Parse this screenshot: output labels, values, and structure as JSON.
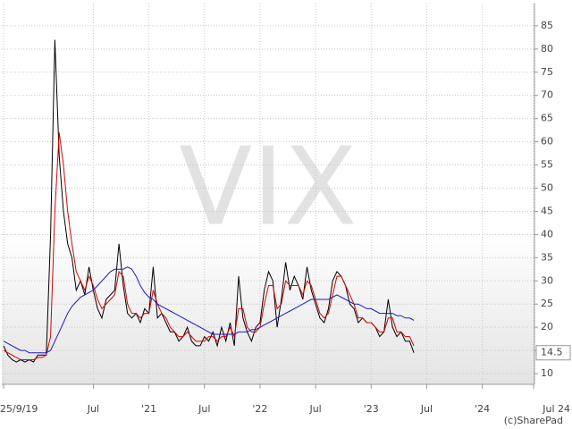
{
  "chart_data": {
    "type": "line",
    "title": "VIX",
    "copyright": "(c)SharePad",
    "last_value": 14.5,
    "categories": [
      "25/9/19",
      null,
      null,
      null,
      null,
      null,
      null,
      null,
      null,
      null,
      null,
      null,
      null,
      null,
      null,
      null,
      null,
      null,
      null,
      null,
      null,
      "Jul",
      null,
      null,
      null,
      null,
      null,
      null,
      null,
      null,
      null,
      null,
      null,
      null,
      "'21",
      null,
      null,
      null,
      null,
      null,
      null,
      null,
      null,
      null,
      null,
      null,
      null,
      "Jul",
      null,
      null,
      null,
      null,
      null,
      null,
      null,
      null,
      null,
      null,
      null,
      null,
      "'22",
      null,
      null,
      null,
      null,
      null,
      null,
      null,
      null,
      null,
      null,
      null,
      null,
      "Jul",
      null,
      null,
      null,
      null,
      null,
      null,
      null,
      null,
      null,
      null,
      null,
      null,
      "'23",
      null,
      null,
      null,
      null,
      null,
      null,
      null,
      null,
      null,
      null,
      null,
      null,
      "Jul",
      null,
      null,
      null,
      null,
      null,
      null,
      null,
      null,
      null,
      null,
      null,
      null,
      "'24",
      null,
      null,
      null,
      null,
      null,
      null,
      null,
      null,
      null,
      null,
      null,
      "Jul 24"
    ],
    "series": [
      {
        "color": "#000000",
        "values": [
          16,
          14,
          13,
          12.5,
          13,
          12.5,
          13,
          12.5,
          14,
          14,
          14,
          40,
          82,
          57,
          45,
          38,
          35,
          28,
          30,
          27,
          33,
          28,
          24,
          22,
          26,
          27,
          28,
          38,
          29,
          23,
          22,
          23,
          21,
          24,
          23,
          33,
          22,
          23,
          21,
          19,
          19,
          17,
          18,
          20,
          17,
          16,
          16,
          18,
          17,
          19,
          16,
          20,
          17,
          21,
          16,
          31,
          22,
          19,
          17,
          20,
          21,
          28,
          32,
          30,
          20,
          26,
          34,
          28,
          31,
          29,
          26,
          33,
          28,
          25,
          22,
          21,
          24,
          30,
          32,
          31,
          29,
          25,
          24,
          21,
          22,
          21,
          21,
          20,
          18,
          19,
          26,
          20,
          18,
          19,
          17,
          17,
          14.5,
          null,
          null,
          null,
          null,
          null,
          null,
          null,
          null,
          null,
          null,
          null,
          null,
          null,
          null,
          null,
          null,
          null,
          null,
          null,
          null,
          null,
          null,
          null,
          null,
          null,
          null,
          null,
          null
        ]
      },
      {
        "color": "#dd0000",
        "values": [
          15,
          14.5,
          14,
          13.5,
          13,
          13,
          13,
          13,
          13.5,
          13.5,
          14,
          18,
          45,
          62,
          55,
          45,
          38,
          32,
          30,
          28,
          31,
          29,
          26,
          24,
          25,
          26,
          27,
          32,
          31,
          25,
          23,
          23,
          22,
          23,
          23,
          28,
          25,
          23,
          22,
          20,
          19,
          18,
          18,
          19,
          18,
          17,
          17,
          17,
          18,
          18,
          17,
          18,
          18,
          20,
          18,
          24,
          24,
          20,
          19,
          19,
          20,
          25,
          29,
          29,
          24,
          25,
          30,
          29,
          29,
          29,
          27,
          30,
          29,
          26,
          23,
          22,
          23,
          27,
          31,
          31,
          29,
          27,
          25,
          22,
          22,
          21,
          21,
          20,
          19,
          19,
          22,
          22,
          19,
          19,
          18,
          18,
          16,
          null,
          null,
          null,
          null,
          null,
          null,
          null,
          null,
          null,
          null,
          null,
          null,
          null,
          null,
          null,
          null,
          null,
          null,
          null,
          null,
          null,
          null,
          null,
          null,
          null,
          null,
          null,
          null
        ]
      },
      {
        "color": "#1a1acc",
        "values": [
          17,
          16.5,
          16,
          15.5,
          15,
          15,
          14.5,
          14.5,
          14.5,
          14.5,
          14.5,
          15,
          17,
          19,
          21,
          23,
          24.5,
          25.5,
          26.5,
          27,
          27.5,
          28,
          29,
          30,
          31,
          32,
          32.5,
          32.5,
          32.5,
          33,
          32.5,
          31,
          29,
          27.5,
          26.5,
          26,
          25,
          24.5,
          24,
          23.5,
          23,
          22.5,
          22,
          21.5,
          21,
          20.5,
          20,
          19.5,
          19,
          18.5,
          18.5,
          18.5,
          18.5,
          18.5,
          18.5,
          19,
          19,
          19,
          19.5,
          19.5,
          20,
          20.5,
          21,
          21.5,
          22,
          22.5,
          23,
          23.5,
          24,
          24.5,
          25,
          25.5,
          26,
          26,
          26,
          26,
          26,
          26.5,
          27,
          26.5,
          26,
          25.5,
          25,
          25,
          24.5,
          24,
          24,
          23.5,
          23,
          23,
          23,
          23,
          22.5,
          22.5,
          22,
          22,
          21.5,
          null,
          null,
          null,
          null,
          null,
          null,
          null,
          null,
          null,
          null,
          null,
          null,
          null,
          null,
          null,
          null,
          null,
          null,
          null,
          null,
          null,
          null,
          null,
          null,
          null,
          null,
          null,
          null
        ]
      }
    ],
    "ylim": [
      7.7,
      89.8
    ],
    "yticks": [
      10,
      15,
      20,
      25,
      30,
      35,
      40,
      45,
      50,
      55,
      60,
      65,
      70,
      75,
      80,
      85
    ],
    "grid": true
  }
}
